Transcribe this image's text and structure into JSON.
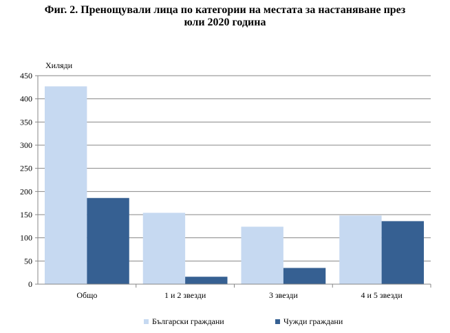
{
  "title_line1": "Фиг. 2. Пренощували лица по категории на местата за настаняване през",
  "title_line2": "юли 2020 година",
  "chart_data": {
    "type": "bar",
    "title": "Фиг. 2. Пренощували лица по категории на местата за настаняване през юли 2020 година",
    "ylabel": "Хиляди",
    "ylim": [
      0,
      450
    ],
    "yticks": [
      0,
      50,
      100,
      150,
      200,
      250,
      300,
      350,
      400,
      450
    ],
    "categories": [
      "Общо",
      "1 и 2 звезди",
      "3 звезди",
      "4 и 5 звезди"
    ],
    "grid": true,
    "legend_position": "bottom",
    "series": [
      {
        "name": "Български граждани",
        "color": "#c6d9f1",
        "values": [
          427,
          154,
          124,
          148
        ]
      },
      {
        "name": "Чужди граждани",
        "color": "#366092",
        "values": [
          186,
          16,
          35,
          136
        ]
      }
    ]
  }
}
